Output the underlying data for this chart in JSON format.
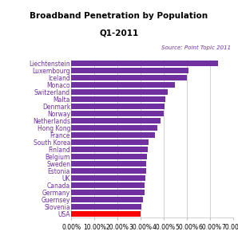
{
  "title1": "Broadband Penetration by Population",
  "title2": "Q1-2011",
  "source": "Source: Point Topic 2011",
  "categories": [
    "USA",
    "Slovenia",
    "Guernsey",
    "Germany",
    "Canada",
    "UK",
    "Estonia",
    "Sweden",
    "Belgium",
    "Finland",
    "South Korea",
    "France",
    "Hong Kong",
    "Netherlands",
    "Norway",
    "Denmark",
    "Malta",
    "Switzerland",
    "Monaco",
    "Iceland",
    "Luxembourg",
    "Liechtenstein"
  ],
  "values": [
    0.298,
    0.302,
    0.308,
    0.315,
    0.317,
    0.32,
    0.322,
    0.324,
    0.327,
    0.33,
    0.335,
    0.36,
    0.37,
    0.385,
    0.4,
    0.403,
    0.405,
    0.415,
    0.448,
    0.498,
    0.508,
    0.635
  ],
  "bar_colors": [
    "#ff0000",
    "#7030a0",
    "#7030a0",
    "#7030a0",
    "#7030a0",
    "#7030a0",
    "#7030a0",
    "#7030a0",
    "#7030a0",
    "#7030a0",
    "#7030a0",
    "#7030a0",
    "#7030a0",
    "#7030a0",
    "#7030a0",
    "#7030a0",
    "#7030a0",
    "#7030a0",
    "#7030a0",
    "#7030a0",
    "#7030a0",
    "#7030a0"
  ],
  "xlim": [
    0,
    0.7
  ],
  "xtick_vals": [
    0.0,
    0.1,
    0.2,
    0.3,
    0.4,
    0.5,
    0.6,
    0.7
  ],
  "xtick_labels": [
    "0.00%",
    "10.00%",
    "20.00%",
    "30.00%",
    "40.00%",
    "50.00%",
    "60.00%",
    "70.00%"
  ],
  "background_color": "#ffffff",
  "bar_height": 0.75,
  "title_fontsize": 7.5,
  "source_fontsize": 5.0,
  "label_fontsize": 5.5,
  "tick_fontsize": 5.5
}
